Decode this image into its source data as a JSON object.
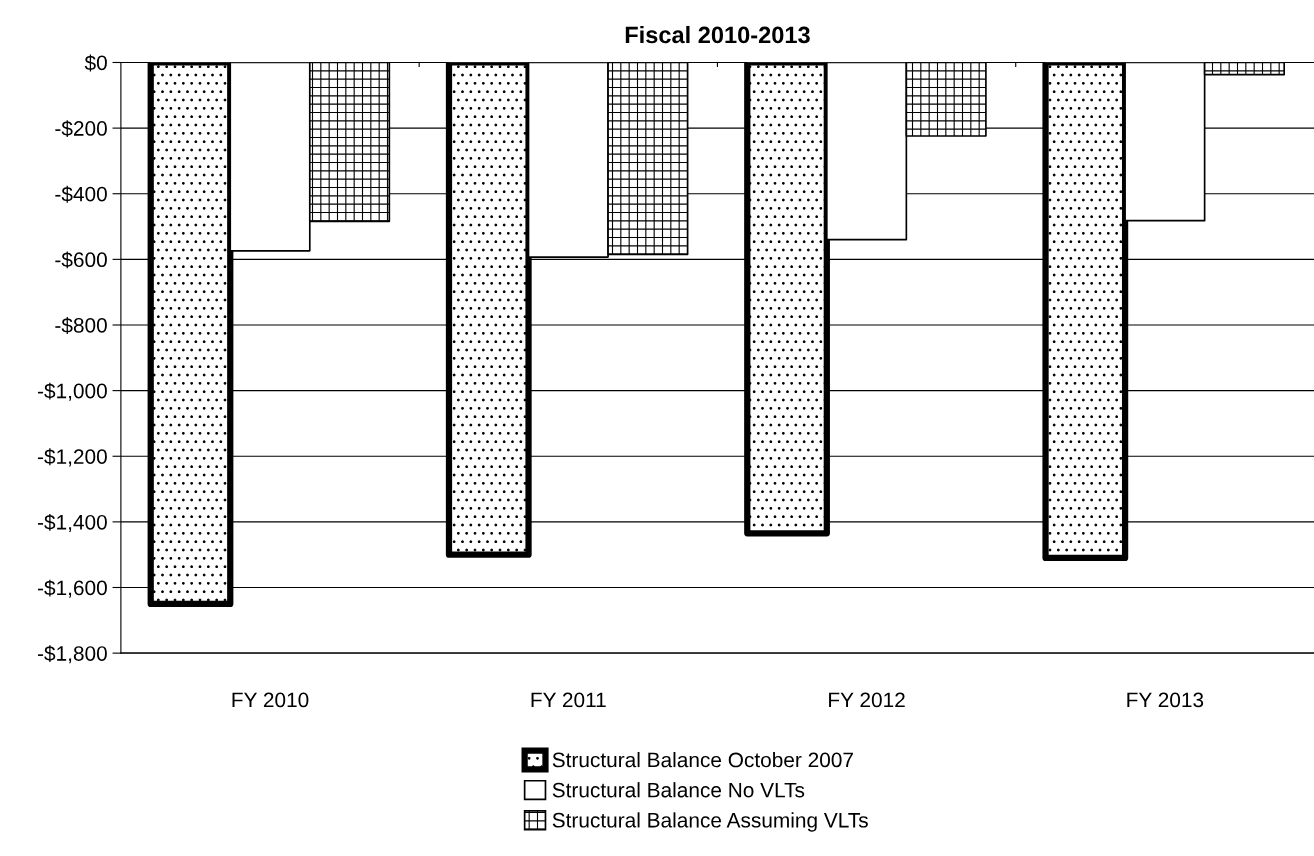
{
  "chart_data": {
    "type": "bar",
    "title": "Fiscal 2010-2013",
    "categories": [
      "FY 2010",
      "FY 2011",
      "FY 2012",
      "FY 2013"
    ],
    "series": [
      {
        "name": "Structural Balance October 2007",
        "color": "#000000",
        "values": [
          -1650,
          -1500,
          -1435,
          -1510
        ]
      },
      {
        "name": "Structural Balance No VLTs",
        "color": "#ffffff",
        "values": [
          -574,
          -593,
          -540,
          -482
        ]
      },
      {
        "name": "Structural Balance Assuming VLTs",
        "color": "#000000",
        "values": [
          -484,
          -585,
          -224,
          -37
        ]
      }
    ],
    "ylim": [
      -1800,
      0
    ],
    "yticks": [
      {
        "value": -1800,
        "label": "-$1,800"
      },
      {
        "value": -1600,
        "label": "-$1,600"
      },
      {
        "value": -1400,
        "label": "-$1,400"
      },
      {
        "value": -1200,
        "label": "-$1,200"
      },
      {
        "value": -1000,
        "label": "-$1,000"
      },
      {
        "value": -800,
        "label": "-$800"
      },
      {
        "value": -600,
        "label": "-$600"
      },
      {
        "value": -400,
        "label": "-$400"
      },
      {
        "value": -200,
        "label": "-$200"
      },
      {
        "value": 0,
        "label": "$0"
      }
    ],
    "grid": "y",
    "legend": "bottom"
  }
}
